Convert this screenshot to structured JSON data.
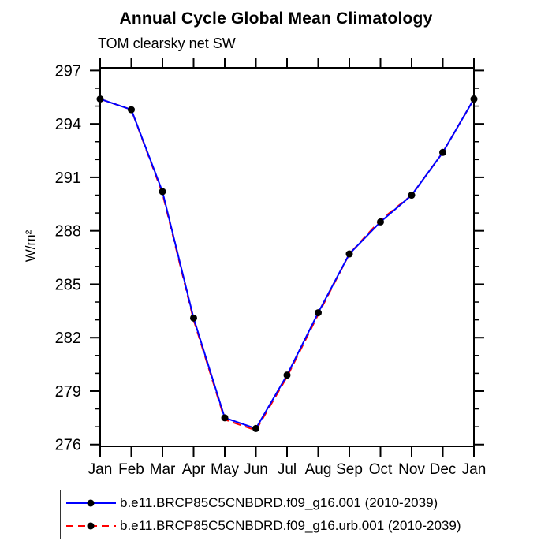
{
  "chart_data": {
    "type": "line",
    "title": "Annual Cycle Global Mean Climatology",
    "subtitle": "TOM clearsky net SW",
    "ylabel": "W/m²",
    "xlabel": "",
    "categories": [
      "Jan",
      "Feb",
      "Mar",
      "Apr",
      "May",
      "Jun",
      "Jul",
      "Aug",
      "Sep",
      "Oct",
      "Nov",
      "Dec",
      "Jan"
    ],
    "ylim": [
      275.9,
      297.15
    ],
    "yticks": {
      "label_min": 276,
      "label_max": 297,
      "major_step": 3,
      "minor_step": 1
    },
    "grid": false,
    "legend_position": "bottom",
    "axis_color": "#000000",
    "marker_color": "#000000",
    "series": [
      {
        "name": "b.e11.BRCP85C5CNBDRD.f09_g16.001 (2010-2039)",
        "color": "#0000ff",
        "line_style": "solid",
        "marker": "filled-circle",
        "values": [
          295.4,
          294.8,
          290.2,
          283.1,
          277.5,
          276.9,
          279.9,
          283.4,
          286.7,
          288.5,
          290.0,
          292.4,
          295.4
        ]
      },
      {
        "name": "b.e11.BRCP85C5CNBDRD.f09_g16.urb.001 (2010-2039)",
        "color": "#ff0000",
        "line_style": "dashed",
        "marker": "filled-circle",
        "values": [
          295.4,
          294.8,
          290.1,
          283.0,
          277.4,
          276.8,
          279.8,
          283.3,
          286.7,
          288.6,
          290.0,
          292.4,
          295.4
        ]
      }
    ]
  }
}
